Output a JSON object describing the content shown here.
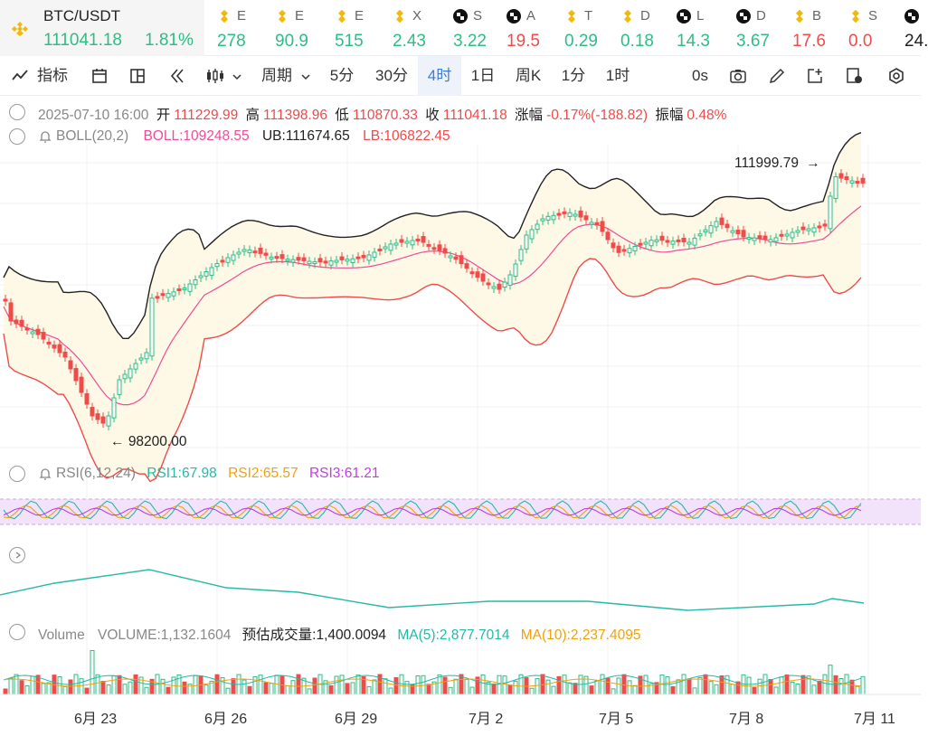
{
  "ticker": {
    "symbol": "BTC/USDT",
    "price": "111041.18",
    "change": "1.81%",
    "items": [
      {
        "icon": "binance-icon",
        "name": "E",
        "value": "278",
        "color": "#2ebd85"
      },
      {
        "icon": "binance-icon",
        "name": "E",
        "value": "90.9",
        "color": "#2ebd85"
      },
      {
        "icon": "binance-icon",
        "name": "E",
        "value": "515",
        "color": "#2ebd85"
      },
      {
        "icon": "binance-icon",
        "name": "X",
        "value": "2.43",
        "color": "#2ebd85"
      },
      {
        "icon": "checker-icon",
        "name": "S",
        "value": "3.22",
        "color": "#2ebd85"
      },
      {
        "icon": "checker-icon",
        "name": "A",
        "value": "19.5",
        "color": "#ef4b4b"
      },
      {
        "icon": "binance-icon",
        "name": "T",
        "value": "0.29",
        "color": "#2ebd85"
      },
      {
        "icon": "binance-icon",
        "name": "D",
        "value": "0.18",
        "color": "#2ebd85"
      },
      {
        "icon": "checker-icon",
        "name": "L",
        "value": "14.3",
        "color": "#2ebd85"
      },
      {
        "icon": "checker-icon",
        "name": "D",
        "value": "3.67",
        "color": "#2ebd85"
      },
      {
        "icon": "binance-icon",
        "name": "B",
        "value": "17.6",
        "color": "#ef4b4b"
      },
      {
        "icon": "binance-icon",
        "name": "S",
        "value": "0.0",
        "color": "#ef4b4b"
      },
      {
        "icon": "checker-icon",
        "name": "",
        "value": "24.",
        "color": "#222"
      }
    ]
  },
  "toolbar": {
    "indicator": "指标",
    "period": "周期",
    "tabs": [
      "5分",
      "30分",
      "4时",
      "1日",
      "周K",
      "1分",
      "1时"
    ],
    "active_tab": "4时",
    "time": "0s"
  },
  "ohlc": {
    "date": "2025-07-10 16:00",
    "open_label": "开",
    "open": "111229.99",
    "high_label": "高",
    "high": "111398.96",
    "low_label": "低",
    "low": "110870.33",
    "close_label": "收",
    "close": "111041.18",
    "chg_label": "涨幅",
    "chg": "-0.17%(-188.82)",
    "amp_label": "振幅",
    "amp": "0.48%"
  },
  "boll": {
    "name": "BOLL(20,2)",
    "boll": "BOLL:109248.55",
    "ub": "UB:111674.65",
    "lb": "LB:106822.45",
    "high_mark": "111999.79",
    "low_mark": "98200.00"
  },
  "rsi": {
    "name": "RSI(6,12,24)",
    "rsi1": "RSI1:67.98",
    "rsi2": "RSI2:65.57",
    "rsi3": "RSI3:61.21"
  },
  "volume": {
    "name": "Volume",
    "vol": "VOLUME:1,132.1604",
    "est": "预估成交量:1,400.0094",
    "ma5": "MA(5):2,877.7014",
    "ma10": "MA(10):2,237.4095"
  },
  "xaxis": [
    "6月 23",
    "6月 26",
    "6月 29",
    "7月 2",
    "7月 5",
    "7月 8",
    "7月 11"
  ],
  "colors": {
    "up": "#2ebd85",
    "down": "#ef4b4b",
    "ub": "#222222",
    "mid": "#ee4d97",
    "lb": "#ef4b4b",
    "band": "#fdf9e6"
  }
}
